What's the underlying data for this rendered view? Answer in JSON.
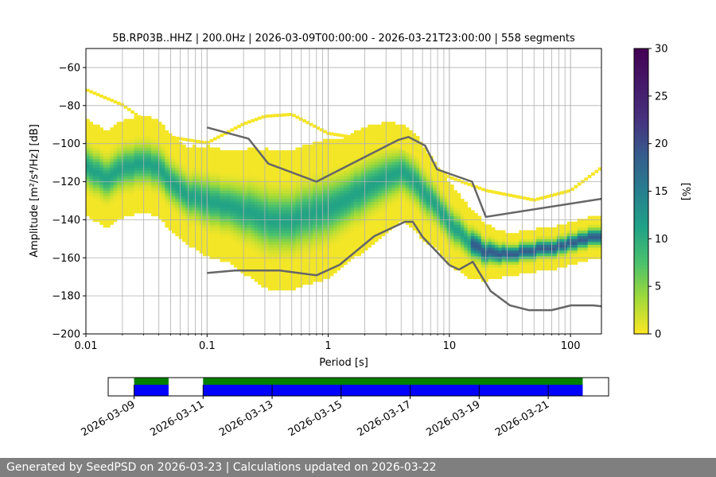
{
  "chart_data": [
    {
      "type": "heatmap",
      "title": "5B.RP03B..HHZ | 200.0Hz | 2026-03-09T00:00:00 - 2026-03-21T23:00:00 | 558 segments",
      "xlabel": "Period [s]",
      "ylabel": "Amplitude [m²/s⁴/Hz] [dB]",
      "xscale": "log",
      "xlim": [
        0.01,
        180
      ],
      "ylim": [
        -200,
        -50
      ],
      "grid": true,
      "x_ticks": [
        0.01,
        0.1,
        1,
        10,
        100
      ],
      "x_tick_labels": [
        "0.01",
        "0.1",
        "1",
        "10",
        "100"
      ],
      "y_ticks": [
        -200,
        -180,
        -160,
        -140,
        -120,
        -100,
        -80,
        -60
      ],
      "y_tick_labels": [
        "−200",
        "−180",
        "−160",
        "−140",
        "−120",
        "−100",
        "−80",
        "−60"
      ],
      "colorbar": {
        "label": "[%]",
        "range": [
          0,
          30
        ],
        "ticks": [
          0,
          5,
          10,
          15,
          20,
          25,
          30
        ],
        "colormap": "viridis_r"
      },
      "mode_curve": {
        "period": [
          0.01,
          0.015,
          0.02,
          0.03,
          0.04,
          0.05,
          0.07,
          0.1,
          0.15,
          0.2,
          0.3,
          0.4,
          0.5,
          0.7,
          1,
          1.5,
          2,
          3,
          4,
          5,
          6,
          8,
          10,
          15,
          20,
          30,
          50,
          80,
          120,
          180
        ],
        "db": [
          -112,
          -118,
          -113,
          -110,
          -113,
          -120,
          -127,
          -130,
          -133,
          -135,
          -139,
          -141,
          -140,
          -137,
          -134,
          -128,
          -124,
          -118,
          -115,
          -118,
          -125,
          -133,
          -142,
          -152,
          -157,
          -158,
          -156,
          -154,
          -151,
          -148
        ],
        "spread_db": [
          7,
          7,
          7,
          7,
          7,
          7,
          7,
          8,
          8,
          9,
          10,
          10,
          10,
          10,
          10,
          9,
          9,
          8,
          7,
          7,
          7,
          6,
          6,
          5,
          4,
          3,
          3,
          3,
          3,
          3
        ]
      },
      "outlier_curve": {
        "period": [
          0.01,
          0.02,
          0.03,
          0.05,
          0.1,
          0.2,
          0.3,
          0.5,
          1,
          2,
          4,
          6,
          10,
          20,
          50,
          100,
          180
        ],
        "db": [
          -72,
          -80,
          -88,
          -97,
          -100,
          -90,
          -86,
          -85,
          -95,
          -98,
          -102,
          -108,
          -118,
          -125,
          -130,
          -125,
          -113
        ]
      },
      "nhnm": {
        "period": [
          0.1,
          0.22,
          0.32,
          0.8,
          3.8,
          4.6,
          6.3,
          7.9,
          15.4,
          20,
          180
        ],
        "db": [
          -91.5,
          -97.4,
          -110.5,
          -120,
          -98,
          -96.5,
          -101,
          -113.5,
          -120,
          -138.5,
          -129
        ]
      },
      "nlnm": {
        "period": [
          0.1,
          0.17,
          0.4,
          0.8,
          1.24,
          2.4,
          4.3,
          5,
          6,
          10,
          12,
          15.6,
          21.9,
          31.6,
          45,
          70,
          101,
          154,
          180
        ],
        "db": [
          -168,
          -166.7,
          -166.7,
          -169.2,
          -163.7,
          -148.6,
          -141.1,
          -141.1,
          -149,
          -163.8,
          -166.2,
          -162.1,
          -177.5,
          -185,
          -187.5,
          -187.5,
          -185,
          -185,
          -185.5
        ]
      }
    },
    {
      "type": "timeline",
      "x_tick_labels": [
        "2026-03-09",
        "2026-03-11",
        "2026-03-13",
        "2026-03-15",
        "2026-03-17",
        "2026-03-19",
        "2026-03-21"
      ],
      "range": [
        "2026-03-08 06:00",
        "2026-03-22 18:00"
      ],
      "coverage": [
        {
          "start": "2026-03-09 00:00",
          "end": "2026-03-10 00:00"
        },
        {
          "start": "2026-03-11 00:00",
          "end": "2026-03-22 00:00"
        }
      ],
      "colors": {
        "data": "#007f00",
        "gaps": "#0000ff"
      }
    }
  ],
  "footer": "Generated by SeedPSD on 2026-03-23 | Calculations updated on 2026-03-22"
}
